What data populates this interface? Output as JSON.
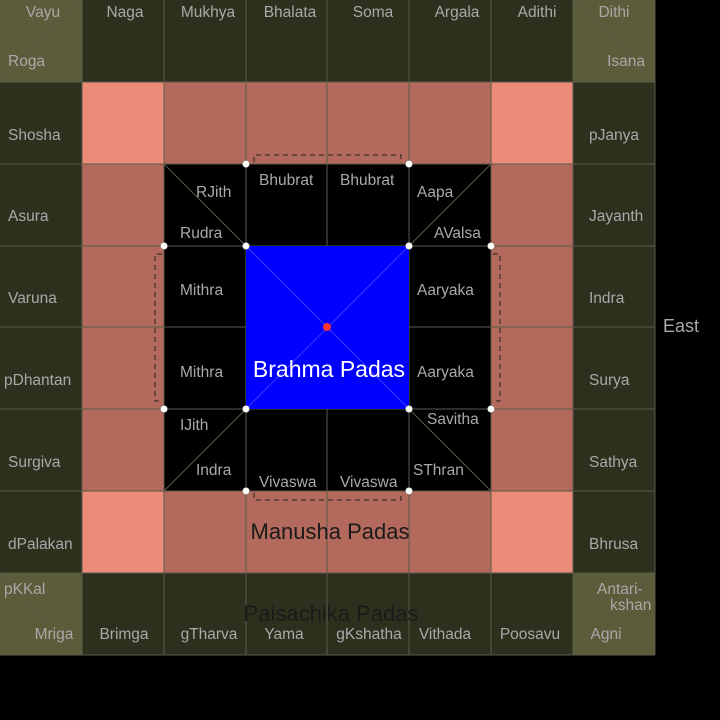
{
  "colors": {
    "outer_ring": "#2e301e",
    "corner_square": "#5c5c3b",
    "manusha_ring": "#b3695b",
    "manusha_corner": "#eb8c79",
    "devika_area": "#000000",
    "brahma": "#0000ff",
    "grid_line": "#5a5a4a",
    "label": "#a9a9a9",
    "center_dot": "#ff3333"
  },
  "labels": {
    "brahma": "Brahma Padas",
    "manusha": "Manusha Padas",
    "paisachika": "Paisachika Padas",
    "east": "East"
  },
  "top_row": [
    "Vayu",
    "Naga",
    "Mukhya",
    "Bhalata",
    "Soma",
    "Argala",
    "Adithi",
    "Dithi"
  ],
  "corner_extras": {
    "top_left": "Roga",
    "top_right": "Isana",
    "bottom_left": "pKKal",
    "bottom_right_line1": "Antari-",
    "bottom_right_line2": "kshan"
  },
  "left_col": [
    "Shosha",
    "Asura",
    "Varuna",
    "pDhantan",
    "Surgiva",
    "dPalakan"
  ],
  "right_col": [
    "pJanya",
    "Jayanth",
    "Indra",
    "Surya",
    "Sathya",
    "Bhrusa"
  ],
  "bottom_row": [
    "Mriga",
    "Brimga",
    "gTharva",
    "Yama",
    "gKshatha",
    "Vithada",
    "Poosavu",
    "Agni"
  ],
  "inner": {
    "top": [
      "Bhubrat",
      "Bhubrat"
    ],
    "bottom": [
      "Vivaswa",
      "Vivaswa"
    ],
    "left": [
      "Mithra",
      "Mithra"
    ],
    "right": [
      "Aaryaka",
      "Aaryaka"
    ],
    "tl_upper": "RJith",
    "tl_lower": "Rudra",
    "tr_upper": "Aapa",
    "tr_lower": "AValsa",
    "bl_upper": "IJith",
    "bl_lower": "Indra",
    "br_upper": "Savitha",
    "br_lower": "SThran"
  }
}
